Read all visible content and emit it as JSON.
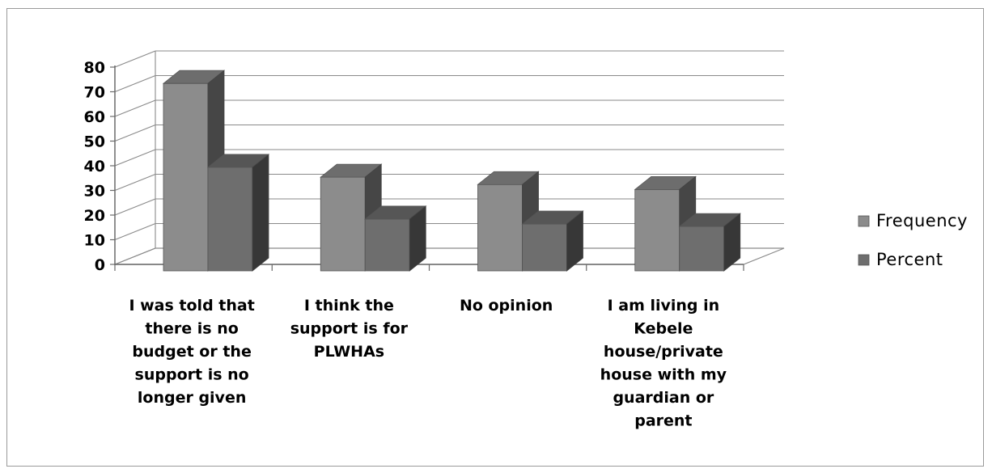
{
  "chart_data": {
    "type": "bar",
    "style": "3d-clustered-column",
    "categories": [
      [
        "I was told that",
        "there is no",
        "budget  or the",
        "support is no",
        "longer given"
      ],
      [
        "I think the",
        "support is for",
        "PLWHAs"
      ],
      [
        "No opinion"
      ],
      [
        "I am living in",
        "Kebele",
        "house/private",
        "house with my",
        "guardian or",
        "parent"
      ]
    ],
    "series": [
      {
        "name": "Frequency",
        "values": [
          76,
          38,
          35,
          33
        ],
        "color": "#8c8c8c"
      },
      {
        "name": "Percent",
        "values": [
          42,
          21,
          19,
          18
        ],
        "color": "#6e6e6e"
      }
    ],
    "yticks": [
      "0",
      "10",
      "20",
      "30",
      "40",
      "50",
      "60",
      "70",
      "80"
    ],
    "ylim": [
      0,
      80
    ],
    "grid": true,
    "legend_position": "right"
  }
}
